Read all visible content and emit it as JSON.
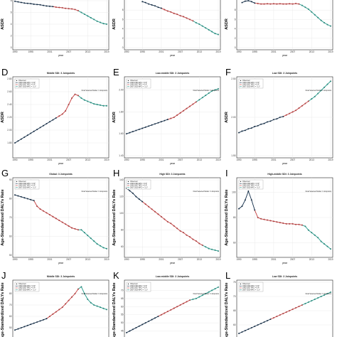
{
  "colors": {
    "observed": "#2b2b2b",
    "seg1": "#0e2a47",
    "seg2": "#c73c3c",
    "seg3": "#1f9a8a",
    "text": "#000000"
  },
  "panels": {
    "0": {
      "letter": "",
      "title": "",
      "ylabel": "ASDR",
      "xlabel": "year",
      "legend": false
    },
    "1": {
      "letter": "",
      "title": "",
      "ylabel": "ASDR",
      "xlabel": "year",
      "legend": false
    },
    "2": {
      "letter": "",
      "title": "",
      "ylabel": "ASDR",
      "xlabel": "year",
      "legend": false
    },
    "3": {
      "letter": "D",
      "title": "Middle SDI: 3 Joinpoints",
      "ylabel": "ASDR",
      "xlabel": "year",
      "legend": true
    },
    "4": {
      "letter": "E",
      "title": "Low-middle SDI: 3 Joinpoints",
      "ylabel": "ASDR",
      "xlabel": "year",
      "legend": true
    },
    "5": {
      "letter": "F",
      "title": "Low SDI: 3 Joinpoints",
      "ylabel": "ASDR",
      "xlabel": "year",
      "legend": true
    },
    "6": {
      "letter": "G",
      "title": "Global: 3 Joinpoints",
      "ylabel": "Age-Standardized DALYs Rate",
      "xlabel": "year",
      "legend": true
    },
    "7": {
      "letter": "H",
      "title": "High SDI: 3 Joinpoints",
      "ylabel": "Age-Standardized DALYs Rate",
      "xlabel": "year",
      "legend": true
    },
    "8": {
      "letter": "I",
      "title": "High-middle SDI: 3 Joinpoints",
      "ylabel": "Age-Standardized DALYs Rate",
      "xlabel": "year",
      "legend": true
    },
    "9": {
      "letter": "J",
      "title": "Middle SDI: 3 Joinpoints",
      "ylabel": "Age-Standardized DALYs Rate",
      "xlabel": "",
      "legend": true
    },
    "10": {
      "letter": "K",
      "title": "Low-middle SDI: 3 Joinpoints",
      "ylabel": "Age-Standardized DALYs Rate",
      "xlabel": "",
      "legend": true
    },
    "11": {
      "letter": "L",
      "title": "Low SDI: 3 Joinpoints",
      "ylabel": "Age-Standardized DALYs Rate",
      "xlabel": "",
      "legend": true
    }
  },
  "legend_items": [
    "Observed",
    "1990-1993 APC = 0.9*",
    "1993-2007 APC = 0.4*",
    "2007-2019 APC = -1.1*"
  ],
  "legend_note": "Final Selected Model: 3 Joinpoints",
  "chart_data": [
    {
      "type": "scatter",
      "title": "",
      "xlabel": "year",
      "ylabel": "ASDR",
      "xlim": [
        1990,
        2019
      ],
      "ylim": [
        0,
        8
      ],
      "x": [
        1990,
        1991,
        1992,
        1993,
        1994,
        1995,
        1996,
        1997,
        1998,
        1999,
        2000,
        2001,
        2002,
        2003,
        2004,
        2005,
        2006,
        2007,
        2008,
        2009,
        2010,
        2011,
        2012,
        2013,
        2014,
        2015,
        2016,
        2017,
        2018,
        2019
      ],
      "segments_end_index": [
        12,
        20,
        29
      ],
      "values": [
        7.9,
        7.8,
        7.7,
        7.6,
        7.55,
        7.5,
        7.4,
        7.35,
        7.3,
        7.2,
        7.1,
        7.05,
        7.0,
        6.9,
        6.85,
        6.8,
        6.7,
        6.65,
        6.6,
        6.5,
        6.3,
        6.0,
        5.7,
        5.4,
        5.1,
        4.8,
        4.5,
        4.3,
        4.1,
        4.0
      ],
      "xticks": [
        "1990",
        "1995",
        "2001",
        "2007",
        "2013",
        "2019"
      ],
      "yticks": [
        "0",
        "2",
        "4",
        "6",
        "8"
      ]
    },
    {
      "type": "scatter",
      "title": "",
      "xlabel": "year",
      "ylabel": "ASDR",
      "xlim": [
        1990,
        2019
      ],
      "ylim": [
        0,
        10
      ],
      "x": [
        1995,
        1996,
        1997,
        1998,
        1999,
        2000,
        2001,
        2002,
        2003,
        2004,
        2005,
        2006,
        2007,
        2008,
        2009,
        2010,
        2011,
        2012,
        2013,
        2014,
        2015,
        2016,
        2017,
        2018,
        2019
      ],
      "segments_end_index": [
        6,
        16,
        24
      ],
      "values": [
        9.8,
        9.6,
        9.3,
        9.1,
        8.9,
        8.6,
        8.4,
        8.1,
        7.8,
        7.6,
        7.3,
        7.1,
        6.8,
        6.6,
        6.3,
        6.0,
        5.7,
        5.3,
        5.0,
        4.6,
        4.2,
        3.8,
        3.4,
        3.0,
        2.8
      ],
      "xticks": [
        "1990",
        "1995",
        "2001",
        "2007",
        "2013",
        "2019"
      ],
      "yticks": [
        "0",
        "2",
        "4",
        "6",
        "8"
      ]
    },
    {
      "type": "scatter",
      "title": "",
      "xlabel": "year",
      "ylabel": "ASDR",
      "xlim": [
        1990,
        2019
      ],
      "ylim": [
        0,
        10
      ],
      "x": [
        1991,
        1992,
        1993,
        1994,
        1995,
        1996,
        1997,
        1998,
        1999,
        2000,
        2001,
        2002,
        2003,
        2004,
        2005,
        2006,
        2007,
        2008,
        2009,
        2010,
        2011,
        2012,
        2013,
        2014,
        2015,
        2016,
        2017,
        2018,
        2019
      ],
      "segments_end_index": [
        4,
        18,
        28
      ],
      "values": [
        9.6,
        9.9,
        10.0,
        9.8,
        9.5,
        9.4,
        9.3,
        9.3,
        9.35,
        9.3,
        9.35,
        9.3,
        9.35,
        9.3,
        9.3,
        9.35,
        9.3,
        9.4,
        9.3,
        9.0,
        8.6,
        8.2,
        7.6,
        7.0,
        6.4,
        5.8,
        5.3,
        4.9,
        4.6
      ],
      "xticks": [
        "1990",
        "1995",
        "2001",
        "2007",
        "2013",
        "2019"
      ],
      "yticks": [
        "0",
        "2",
        "4",
        "6",
        "8"
      ]
    },
    {
      "type": "scatter",
      "title": "Middle SDI: 3 Joinpoints",
      "xlabel": "year",
      "ylabel": "ASDR",
      "xlim": [
        1990,
        2019
      ],
      "ylim": [
        1.6,
        2.8
      ],
      "x": [
        1990,
        1991,
        1992,
        1993,
        1994,
        1995,
        1996,
        1997,
        1998,
        1999,
        2000,
        2001,
        2002,
        2003,
        2004,
        2005,
        2006,
        2007,
        2008,
        2009,
        2010,
        2011,
        2012,
        2013,
        2014,
        2015,
        2016,
        2017,
        2018,
        2019
      ],
      "segments_end_index": [
        13,
        20,
        29
      ],
      "values": [
        1.8,
        1.83,
        1.86,
        1.89,
        1.92,
        1.95,
        1.98,
        2.01,
        2.04,
        2.07,
        2.1,
        2.13,
        2.16,
        2.19,
        2.22,
        2.25,
        2.3,
        2.4,
        2.5,
        2.56,
        2.54,
        2.5,
        2.47,
        2.45,
        2.43,
        2.41,
        2.4,
        2.39,
        2.38,
        2.38
      ],
      "xticks": [
        "1990",
        "1995",
        "2001",
        "2007",
        "2013",
        "2019"
      ],
      "yticks": [
        "1.80",
        "2.00",
        "2.20",
        "2.40",
        "2.60",
        "2.80"
      ]
    },
    {
      "type": "scatter",
      "title": "Low-middle SDI: 3 Joinpoints",
      "xlabel": "year",
      "ylabel": "ASDR",
      "xlim": [
        1990,
        2019
      ],
      "ylim": [
        1.4,
        2.1
      ],
      "x": [
        1990,
        1991,
        1992,
        1993,
        1994,
        1995,
        1996,
        1997,
        1998,
        1999,
        2000,
        2001,
        2002,
        2003,
        2004,
        2005,
        2006,
        2007,
        2008,
        2009,
        2010,
        2011,
        2012,
        2013,
        2014,
        2015,
        2016,
        2017,
        2018,
        2019
      ],
      "segments_end_index": [
        13,
        22,
        29
      ],
      "values": [
        1.6,
        1.61,
        1.62,
        1.63,
        1.64,
        1.65,
        1.66,
        1.67,
        1.68,
        1.69,
        1.7,
        1.71,
        1.72,
        1.73,
        1.74,
        1.75,
        1.77,
        1.79,
        1.81,
        1.83,
        1.85,
        1.87,
        1.89,
        1.91,
        1.93,
        1.95,
        1.97,
        1.99,
        2.0,
        2.01
      ],
      "xticks": [
        "1990",
        "1995",
        "2001",
        "2007",
        "2013",
        "2019"
      ],
      "yticks": [
        "1.40",
        "1.60",
        "1.80",
        "2.00"
      ]
    },
    {
      "type": "scatter",
      "title": "Low SDI: 3 Joinpoints",
      "xlabel": "year",
      "ylabel": "ASDR",
      "xlim": [
        1990,
        2019
      ],
      "ylim": [
        1.5,
        2.5
      ],
      "x": [
        1990,
        1991,
        1992,
        1993,
        1994,
        1995,
        1996,
        1997,
        1998,
        1999,
        2000,
        2001,
        2002,
        2003,
        2004,
        2005,
        2006,
        2007,
        2008,
        2009,
        2010,
        2011,
        2012,
        2013,
        2014,
        2015,
        2016,
        2017,
        2018,
        2019
      ],
      "segments_end_index": [
        14,
        22,
        29
      ],
      "values": [
        1.8,
        1.82,
        1.83,
        1.85,
        1.86,
        1.88,
        1.89,
        1.91,
        1.92,
        1.94,
        1.95,
        1.97,
        1.98,
        2.0,
        2.01,
        2.03,
        2.05,
        2.07,
        2.09,
        2.12,
        2.15,
        2.18,
        2.21,
        2.24,
        2.27,
        2.31,
        2.35,
        2.39,
        2.43,
        2.47
      ],
      "xticks": [
        "1990",
        "1995",
        "2001",
        "2007",
        "2013",
        "2019"
      ],
      "yticks": [
        "1.50",
        "2.00",
        "2.50"
      ]
    },
    {
      "type": "scatter",
      "title": "Global: 3 Joinpoints",
      "xlabel": "year",
      "ylabel": "Age-Standardized DALYs Rate",
      "xlim": [
        1990,
        2019
      ],
      "ylim": [
        50,
        90
      ],
      "x": [
        1990,
        1991,
        1992,
        1993,
        1994,
        1995,
        1996,
        1997,
        1998,
        1999,
        2000,
        2001,
        2002,
        2003,
        2004,
        2005,
        2006,
        2007,
        2008,
        2009,
        2010,
        2011,
        2012,
        2013,
        2014,
        2015,
        2016,
        2017,
        2018,
        2019
      ],
      "segments_end_index": [
        6,
        20,
        29
      ],
      "values": [
        82,
        81.5,
        81,
        80.5,
        80,
        79.5,
        79,
        76,
        74.5,
        73.5,
        72.5,
        71.5,
        70.5,
        69.5,
        68.5,
        67.5,
        66.5,
        65.5,
        64.5,
        64,
        63.5,
        63.5,
        62,
        60.5,
        59,
        57.5,
        56,
        55,
        54,
        53.5
      ],
      "xticks": [
        "1990",
        "1995",
        "2001",
        "2007",
        "2013",
        "2019"
      ],
      "yticks": [
        "50",
        "60",
        "70",
        "80",
        "90"
      ]
    },
    {
      "type": "scatter",
      "title": "High SDI: 3 Joinpoints",
      "xlabel": "year",
      "ylabel": "Age-Standardized DALYs Rate",
      "xlim": [
        1990,
        2019
      ],
      "ylim": [
        50,
        140
      ],
      "x": [
        1990,
        1991,
        1992,
        1993,
        1994,
        1995,
        1996,
        1997,
        1998,
        1999,
        2000,
        2001,
        2002,
        2003,
        2004,
        2005,
        2006,
        2007,
        2008,
        2009,
        2010,
        2011,
        2012,
        2013,
        2014,
        2015,
        2016,
        2017,
        2018,
        2019
      ],
      "segments_end_index": [
        5,
        24,
        29
      ],
      "values": [
        130,
        127,
        124,
        120,
        117,
        114,
        111,
        108,
        105,
        102,
        99,
        96,
        93,
        90,
        88,
        85,
        82,
        79,
        77,
        74,
        72,
        69,
        67,
        64,
        62,
        60,
        58,
        57,
        56,
        55
      ],
      "xticks": [
        "1990",
        "1995",
        "2001",
        "2007",
        "2013",
        "2019"
      ],
      "yticks": [
        "60",
        "80",
        "100",
        "120",
        "140"
      ]
    },
    {
      "type": "scatter",
      "title": "High-middle SDI: 3 Joinpoints",
      "xlabel": "year",
      "ylabel": "Age-Standardized DALYs Rate",
      "xlim": [
        1990,
        2019
      ],
      "ylim": [
        50,
        110
      ],
      "x": [
        1990,
        1991,
        1992,
        1993,
        1994,
        1995,
        1996,
        1997,
        1998,
        1999,
        2000,
        2001,
        2002,
        2003,
        2004,
        2005,
        2006,
        2007,
        2008,
        2009,
        2010,
        2011,
        2012,
        2013,
        2014,
        2015,
        2016,
        2017,
        2018,
        2019
      ],
      "segments_end_index": [
        5,
        20,
        29
      ],
      "values": [
        87,
        89,
        94,
        101,
        94,
        86,
        80,
        79,
        78.5,
        78,
        77.5,
        77,
        76.5,
        76,
        75.5,
        75,
        75,
        75,
        74.5,
        74.5,
        74,
        73,
        70,
        68,
        66,
        64,
        61,
        59,
        57,
        55
      ],
      "xticks": [
        "1990",
        "1995",
        "2001",
        "2007",
        "2013",
        "2019"
      ],
      "yticks": [
        "60",
        "80",
        "100"
      ]
    },
    {
      "type": "scatter",
      "title": "Middle SDI: 3 Joinpoints",
      "xlabel": "",
      "ylabel": "Age-Standardized DALYs Rate",
      "xlim": [
        1990,
        2019
      ],
      "ylim": [
        40,
        90
      ],
      "x": [
        1990,
        1991,
        1992,
        1993,
        1994,
        1995,
        1996,
        1997,
        1998,
        1999,
        2000,
        2001,
        2002,
        2003,
        2004,
        2005,
        2006,
        2007,
        2008,
        2009,
        2010,
        2011,
        2012,
        2013,
        2014,
        2015,
        2016,
        2017,
        2018,
        2019
      ],
      "segments_end_index": [
        10,
        20,
        29
      ],
      "values": [
        48,
        49,
        50,
        51,
        52,
        53,
        54,
        55,
        56,
        57,
        58,
        60,
        62,
        64,
        66,
        68,
        71,
        74,
        77,
        80,
        84,
        86,
        80,
        75,
        72,
        70,
        69,
        68,
        67,
        66
      ],
      "xticks": [],
      "yticks": [
        "50",
        "60",
        "70",
        "80"
      ]
    },
    {
      "type": "scatter",
      "title": "Low-middle SDI: 3 Joinpoints",
      "xlabel": "",
      "ylabel": "Age-Standardized DALYs Rate",
      "xlim": [
        1990,
        2019
      ],
      "ylim": [
        40,
        75
      ],
      "x": [
        1990,
        1991,
        1992,
        1993,
        1994,
        1995,
        1996,
        1997,
        1998,
        1999,
        2000,
        2001,
        2002,
        2003,
        2004,
        2005,
        2006,
        2007,
        2008,
        2009,
        2010,
        2011,
        2012,
        2013,
        2014,
        2015,
        2016,
        2017,
        2018,
        2019
      ],
      "segments_end_index": [
        10,
        20,
        29
      ],
      "values": [
        44,
        45,
        46,
        47,
        48,
        49,
        50,
        51,
        52,
        53,
        54,
        55,
        56,
        57,
        58,
        59,
        60,
        61,
        62,
        63,
        64,
        64.5,
        65,
        66,
        67,
        68,
        69,
        70,
        71,
        72
      ],
      "xticks": [],
      "yticks": [
        "45",
        "50",
        "55",
        "60",
        "65",
        "70"
      ]
    },
    {
      "type": "scatter",
      "title": "Low SDI: 3 Joinpoints",
      "xlabel": "",
      "ylabel": "Age-Standardized DALYs Rate",
      "xlim": [
        1990,
        2019
      ],
      "ylim": [
        55,
        75
      ],
      "x": [
        1990,
        1991,
        1992,
        1993,
        1994,
        1995,
        1996,
        1997,
        1998,
        1999,
        2000,
        2001,
        2002,
        2003,
        2004,
        2005,
        2006,
        2007,
        2008,
        2009,
        2010,
        2011,
        2012,
        2013,
        2014,
        2015,
        2016,
        2017,
        2018,
        2019
      ],
      "segments_end_index": [
        10,
        20,
        29
      ],
      "values": [
        57,
        57.5,
        58,
        58.5,
        59,
        59.5,
        60,
        60.5,
        61,
        61.5,
        62,
        62.5,
        63,
        63.5,
        64,
        64.5,
        65,
        65.5,
        66,
        66.5,
        67,
        67.5,
        68,
        68.5,
        69,
        69.5,
        70,
        70.5,
        71,
        71.5
      ],
      "xticks": [],
      "yticks": [
        "60",
        "65",
        "70",
        "75"
      ]
    }
  ]
}
